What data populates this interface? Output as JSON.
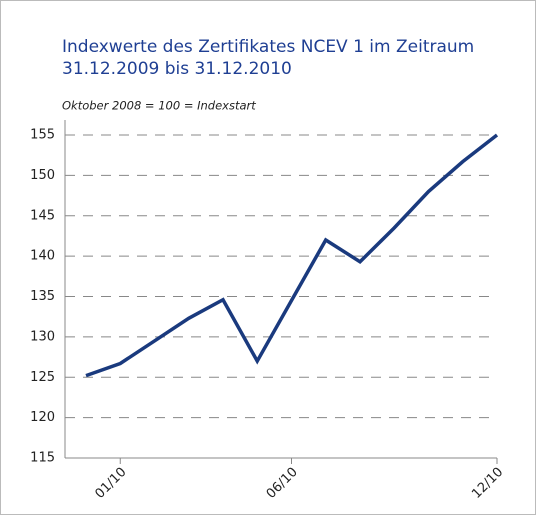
{
  "chart_data": {
    "type": "line",
    "title": [
      "Indexwerte des Zertifikates NCEV 1 im Zeitraum",
      "31.12.2009 bis 31.12.2010"
    ],
    "subtitle": "Oktober 2008 = 100 = Indexstart",
    "categories": [
      null,
      "01/10",
      null,
      null,
      null,
      null,
      "06/10",
      null,
      null,
      null,
      null,
      null,
      "12/10"
    ],
    "series": [
      {
        "name": "NCEV 1",
        "color": "#1a3a7e",
        "values": [
          125.2,
          126.7,
          129.5,
          132.3,
          134.6,
          127,
          134.5,
          142,
          139.3,
          143.5,
          148,
          151.7,
          155
        ]
      }
    ],
    "ylim": [
      115,
      155
    ],
    "yticks": [
      115,
      120,
      125,
      130,
      135,
      140,
      145,
      150,
      155
    ],
    "grid": true
  }
}
